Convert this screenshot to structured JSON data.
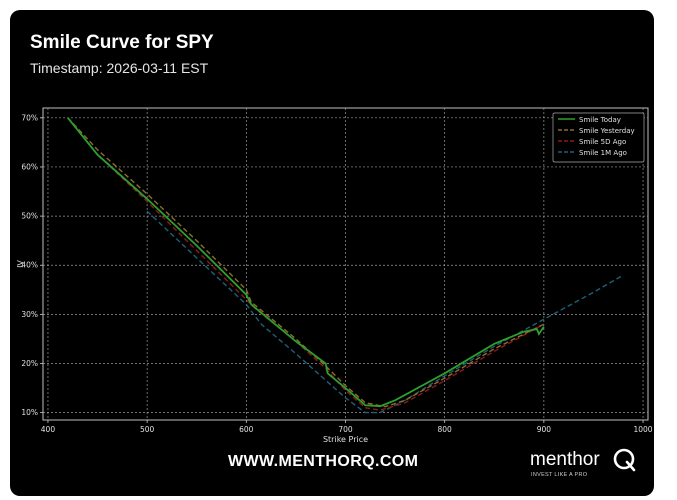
{
  "header": {
    "title": "Smile Curve for SPY",
    "subtitle": "Timestamp: 2026-03-11 EST"
  },
  "footer": {
    "url": "WWW.MENTHORQ.COM",
    "brand_name": "menthor",
    "brand_tagline": "INVEST LIKE A PRO",
    "brand_letter": "Q"
  },
  "colors": {
    "background": "#000000",
    "grid": "#9a9a9a",
    "smile_today": "#2ca02c",
    "smile_yesterday": "#8c6d2c",
    "smile_5d": "#8b1a1a",
    "smile_1m": "#1f5f7a"
  },
  "chart_data": {
    "type": "line",
    "title": "",
    "xlabel": "Strike Price",
    "ylabel": "IV",
    "xlim": [
      395,
      1005
    ],
    "ylim": [
      0.085,
      0.72
    ],
    "xticks": [
      400,
      500,
      600,
      700,
      800,
      900,
      1000
    ],
    "yticks": [
      0.1,
      0.2,
      0.3,
      0.4,
      0.5,
      0.6,
      0.7
    ],
    "ytick_labels": [
      "10%",
      "20%",
      "30%",
      "40%",
      "50%",
      "60%",
      "70%"
    ],
    "grid": true,
    "legend_position": "top-right",
    "series": [
      {
        "name": "Smile Today",
        "style": "solid",
        "color": "#2ca02c",
        "x": [
          420,
          450,
          500,
          550,
          600,
          605,
          650,
          680,
          682,
          700,
          720,
          735,
          750,
          800,
          850,
          880,
          893,
          895,
          900
        ],
        "y": [
          0.7,
          0.625,
          0.535,
          0.44,
          0.34,
          0.32,
          0.245,
          0.2,
          0.18,
          0.15,
          0.115,
          0.113,
          0.125,
          0.18,
          0.24,
          0.265,
          0.27,
          0.26,
          0.275
        ]
      },
      {
        "name": "Smile Yesterday",
        "style": "dashed",
        "color": "#8c6d2c",
        "x": [
          420,
          450,
          500,
          550,
          600,
          605,
          650,
          680,
          700,
          720,
          740,
          760,
          800,
          850,
          880,
          900
        ],
        "y": [
          0.7,
          0.635,
          0.545,
          0.45,
          0.35,
          0.325,
          0.25,
          0.195,
          0.155,
          0.12,
          0.112,
          0.125,
          0.17,
          0.23,
          0.26,
          0.28
        ]
      },
      {
        "name": "Smile 5D Ago",
        "style": "dashed",
        "color": "#8b1a1a",
        "x": [
          420,
          450,
          500,
          550,
          600,
          610,
          650,
          680,
          700,
          720,
          735,
          760,
          800,
          850,
          900
        ],
        "y": [
          0.7,
          0.625,
          0.53,
          0.43,
          0.33,
          0.31,
          0.245,
          0.19,
          0.145,
          0.11,
          0.105,
          0.12,
          0.165,
          0.225,
          0.28
        ]
      },
      {
        "name": "Smile 1M Ago",
        "style": "dashed",
        "color": "#1f5f7a",
        "x": [
          500,
          550,
          600,
          615,
          650,
          700,
          720,
          735,
          760,
          800,
          850,
          900,
          950,
          980
        ],
        "y": [
          0.51,
          0.415,
          0.32,
          0.28,
          0.22,
          0.13,
          0.1,
          0.1,
          0.125,
          0.175,
          0.235,
          0.29,
          0.345,
          0.38
        ]
      }
    ]
  }
}
